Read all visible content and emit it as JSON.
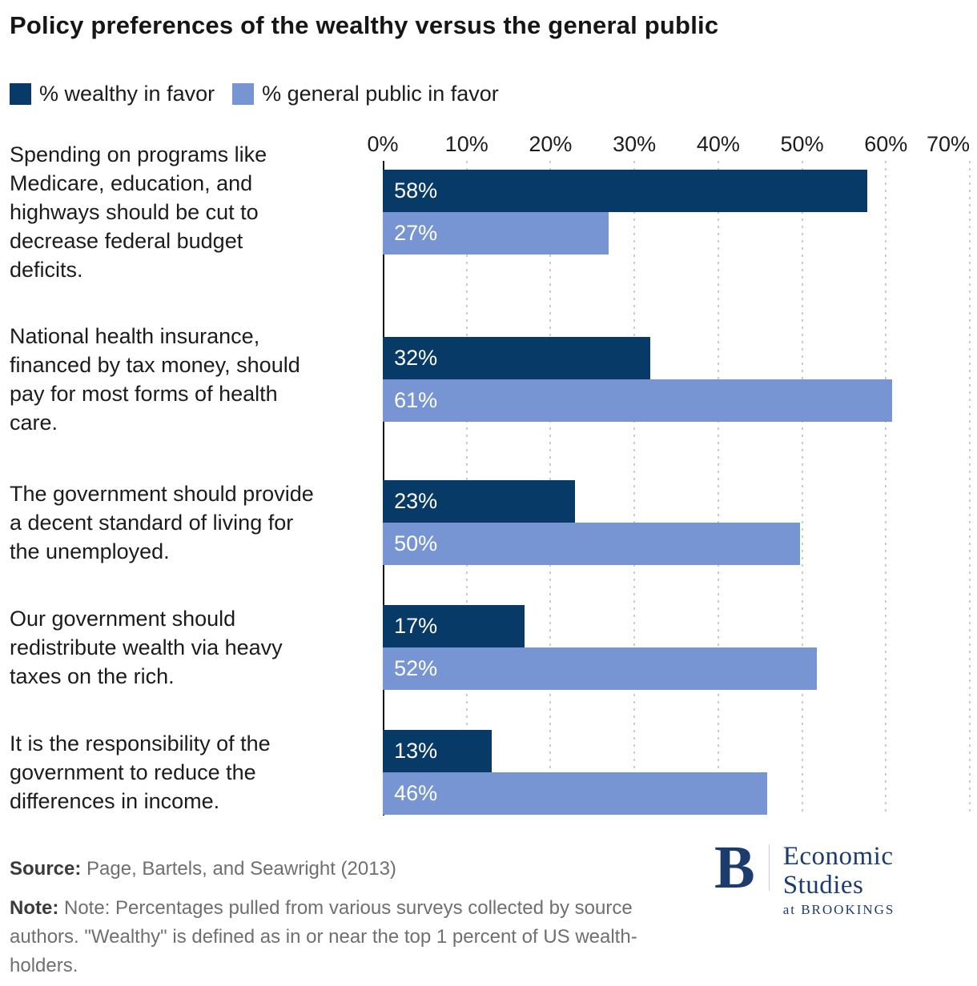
{
  "title": "Policy preferences of the wealthy versus the general public",
  "legend": {
    "wealthy": {
      "label": "% wealthy in favor",
      "color": "#083a68"
    },
    "public": {
      "label": "% general public in favor",
      "color": "#7695d2"
    }
  },
  "chart_data": {
    "type": "bar",
    "orientation": "horizontal",
    "title": "Policy preferences of the wealthy versus the general public",
    "categories": [
      "Spending on programs like\nMedicare, education, and\nhighways should be cut to\ndecrease federal budget\ndeficits.",
      "National health insurance,\nfinanced by tax money, should\npay for most forms of health\ncare.",
      "The government should provide\na decent standard of living for\nthe unemployed.",
      "Our government should\nredistribute wealth via heavy\ntaxes on the rich.",
      "It is the responsibility of the\ngovernment to reduce the\ndifferences in income."
    ],
    "series": [
      {
        "name": "% wealthy in favor",
        "color": "#083a68",
        "values": [
          58,
          32,
          23,
          17,
          13
        ]
      },
      {
        "name": "% general public in favor",
        "color": "#7695d2",
        "values": [
          27,
          61,
          50,
          52,
          46
        ]
      }
    ],
    "xlabel": "",
    "ylabel": "",
    "xlim": [
      0,
      70
    ],
    "ticks": [
      "0%",
      "10%",
      "20%",
      "30%",
      "40%",
      "50%",
      "60%",
      "70%"
    ],
    "grid": "dotted-vertical",
    "legend_position": "top",
    "value_label_format": "{value}%"
  },
  "footer": {
    "source_label": "Source:",
    "source_text": "Page, Bartels, and Seawright (2013)",
    "note_label": "Note:",
    "note_text": "Note: Percentages pulled from various surveys collected by source authors. \"Wealthy\" is defined as in or near the top 1 percent of US wealth-holders."
  },
  "logo": {
    "initial": "B",
    "line1": "Economic Studies",
    "line2": "at BROOKINGS",
    "color": "#1d3c6e"
  }
}
